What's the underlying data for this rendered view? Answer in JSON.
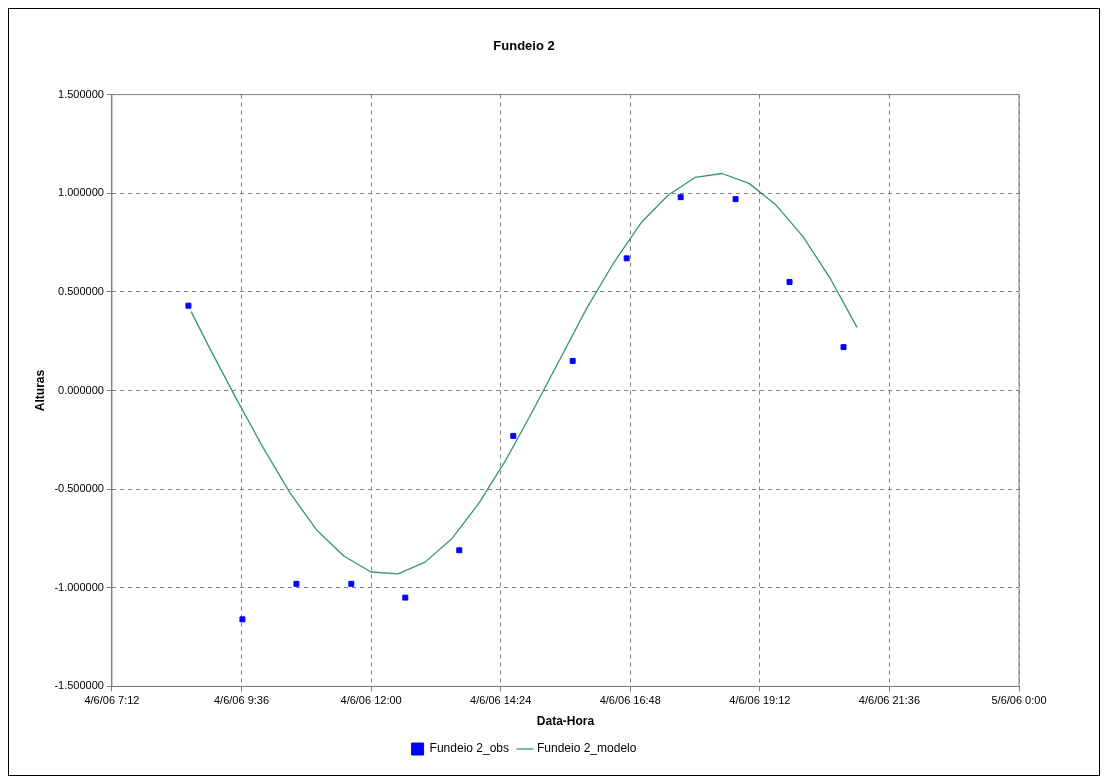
{
  "chart_data": {
    "type": "scatter",
    "title": "Fundeio 2",
    "xlabel": "Data-Hora",
    "ylabel": "Alturas",
    "xlim": [
      "--06-04T07:12",
      "--06-05T00:00"
    ],
    "xticks": [
      {
        "value": "--06-04T07:12",
        "label": "4/6/06 7:12"
      },
      {
        "value": "--06-04T09:36",
        "label": "4/6/06 9:36"
      },
      {
        "value": "--06-04T12:00",
        "label": "4/6/06 12:00"
      },
      {
        "value": "--06-04T14:24",
        "label": "4/6/06 14:24"
      },
      {
        "value": "--06-04T16:48",
        "label": "4/6/06 16:48"
      },
      {
        "value": "--06-04T19:12",
        "label": "4/6/06 19:12"
      },
      {
        "value": "--06-04T21:36",
        "label": "4/6/06 21:36"
      },
      {
        "value": "--06-05T00:00",
        "label": "5/6/06 0:00"
      }
    ],
    "ylim": [
      -1.5,
      1.5
    ],
    "yticks": [
      {
        "value": -1.5,
        "label": "-1.500000"
      },
      {
        "value": -1,
        "label": "-1.000000"
      },
      {
        "value": -0.5,
        "label": "-0.500000"
      },
      {
        "value": 0,
        "label": "0.000000"
      },
      {
        "value": 0.5,
        "label": "0.500000"
      },
      {
        "value": 1,
        "label": "1.000000"
      },
      {
        "value": 1.5,
        "label": "1.500000"
      }
    ],
    "grid": true,
    "legend": "bottom",
    "marker": "square",
    "series": [
      {
        "name": "Fundeio 2_obs",
        "color": "#0000ff",
        "x": [
          "--06-04T08:37",
          "--06-04T09:37",
          "--06-04T10:37",
          "--06-04T11:38",
          "--06-04T12:38",
          "--06-04T13:38",
          "--06-04T14:38",
          "--06-04T15:44",
          "--06-04T16:44",
          "--06-04T17:44",
          "--06-04T18:45",
          "--06-04T19:45",
          "--06-04T20:45"
        ],
        "values": [
          0.43,
          -1.16,
          -0.98,
          -0.98,
          -1.05,
          -0.81,
          -0.23,
          0.15,
          0.67,
          0.98,
          0.97,
          0.55,
          0.22
        ]
      },
      {
        "name": "Fundeio 2_modelo",
        "type": "line",
        "marker": "none",
        "line_style": "solid",
        "color": "#339966",
        "x": [
          "--06-04T08:40",
          "--06-04T09:00",
          "--06-04T09:30",
          "--06-04T10:00",
          "--06-04T10:30",
          "--06-04T11:00",
          "--06-04T11:30",
          "--06-04T12:00",
          "--06-04T12:30",
          "--06-04T13:00",
          "--06-04T13:30",
          "--06-04T14:00",
          "--06-04T14:30",
          "--06-04T15:00",
          "--06-04T15:30",
          "--06-04T16:00",
          "--06-04T16:30",
          "--06-04T17:00",
          "--06-04T17:30",
          "--06-04T18:00",
          "--06-04T18:30",
          "--06-04T19:00",
          "--06-04T19:30",
          "--06-04T20:00",
          "--06-04T20:30",
          "--06-04T21:00"
        ],
        "values": [
          0.4,
          0.22,
          -0.04,
          -0.29,
          -0.52,
          -0.71,
          -0.84,
          -0.92,
          -0.93,
          -0.87,
          -0.75,
          -0.57,
          -0.35,
          -0.1,
          0.16,
          0.42,
          0.65,
          0.85,
          0.99,
          1.08,
          1.1,
          1.05,
          0.94,
          0.78,
          0.57,
          0.32
        ]
      }
    ]
  }
}
